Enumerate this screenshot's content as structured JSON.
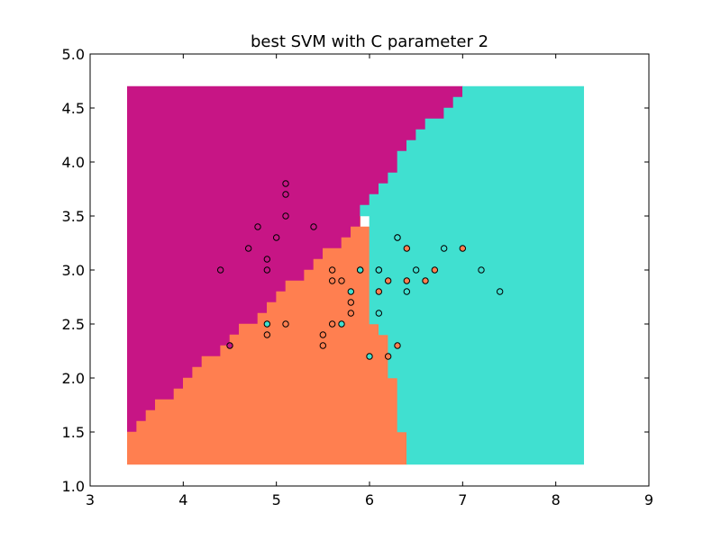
{
  "chart_data": {
    "type": "scatter",
    "title": "best SVM with C parameter 2",
    "xlabel": "",
    "ylabel": "",
    "xlim": [
      3,
      9
    ],
    "ylim": [
      1.0,
      5.0
    ],
    "grid": false,
    "x_ticks": [
      "3",
      "4",
      "5",
      "6",
      "7",
      "8",
      "9"
    ],
    "y_ticks": [
      "1.0",
      "1.5",
      "2.0",
      "2.5",
      "3.0",
      "3.5",
      "4.0",
      "4.5",
      "5.0"
    ],
    "x_tick_values": [
      3,
      4,
      5,
      6,
      7,
      8,
      9
    ],
    "y_tick_values": [
      1.0,
      1.5,
      2.0,
      2.5,
      3.0,
      3.5,
      4.0,
      4.5,
      5.0
    ],
    "colors": {
      "class_0": "#c71585",
      "class_1": "#ff7f50",
      "class_2": "#40e0d0",
      "marker_edge": "#000000"
    },
    "decision_regions": [
      {
        "name": "class_0",
        "color": "#c71585",
        "polygon": [
          [
            3.4,
            1.5
          ],
          [
            3.5,
            1.5
          ],
          [
            3.5,
            1.6
          ],
          [
            3.6,
            1.6
          ],
          [
            3.6,
            1.7
          ],
          [
            3.7,
            1.7
          ],
          [
            3.7,
            1.8
          ],
          [
            3.9,
            1.8
          ],
          [
            3.9,
            1.9
          ],
          [
            4.0,
            1.9
          ],
          [
            4.0,
            2.0
          ],
          [
            4.1,
            2.0
          ],
          [
            4.1,
            2.1
          ],
          [
            4.2,
            2.1
          ],
          [
            4.2,
            2.2
          ],
          [
            4.4,
            2.2
          ],
          [
            4.4,
            2.3
          ],
          [
            4.5,
            2.3
          ],
          [
            4.5,
            2.4
          ],
          [
            4.6,
            2.4
          ],
          [
            4.6,
            2.5
          ],
          [
            4.8,
            2.5
          ],
          [
            4.8,
            2.6
          ],
          [
            4.9,
            2.6
          ],
          [
            4.9,
            2.7
          ],
          [
            5.0,
            2.7
          ],
          [
            5.0,
            2.8
          ],
          [
            5.1,
            2.8
          ],
          [
            5.1,
            2.9
          ],
          [
            5.3,
            2.9
          ],
          [
            5.3,
            3.0
          ],
          [
            5.4,
            3.0
          ],
          [
            5.4,
            3.1
          ],
          [
            5.5,
            3.1
          ],
          [
            5.5,
            3.2
          ],
          [
            5.7,
            3.2
          ],
          [
            5.7,
            3.3
          ],
          [
            5.8,
            3.3
          ],
          [
            5.8,
            3.4
          ],
          [
            5.9,
            3.4
          ],
          [
            5.9,
            3.5
          ],
          [
            5.9,
            3.6
          ],
          [
            6.0,
            3.6
          ],
          [
            6.0,
            3.7
          ],
          [
            6.1,
            3.7
          ],
          [
            6.1,
            3.8
          ],
          [
            6.2,
            3.8
          ],
          [
            6.2,
            3.9
          ],
          [
            6.3,
            3.9
          ],
          [
            6.3,
            4.1
          ],
          [
            6.4,
            4.1
          ],
          [
            6.4,
            4.2
          ],
          [
            6.5,
            4.2
          ],
          [
            6.5,
            4.3
          ],
          [
            6.6,
            4.3
          ],
          [
            6.6,
            4.4
          ],
          [
            6.8,
            4.4
          ],
          [
            6.8,
            4.5
          ],
          [
            6.9,
            4.5
          ],
          [
            6.9,
            4.6
          ],
          [
            7.0,
            4.6
          ],
          [
            7.0,
            4.7
          ],
          [
            3.4,
            4.7
          ]
        ]
      },
      {
        "name": "class_1",
        "color": "#ff7f50",
        "polygon": [
          [
            3.4,
            1.2
          ],
          [
            6.4,
            1.2
          ],
          [
            6.4,
            1.5
          ],
          [
            6.3,
            1.5
          ],
          [
            6.3,
            2.0
          ],
          [
            6.2,
            2.0
          ],
          [
            6.2,
            2.4
          ],
          [
            6.1,
            2.4
          ],
          [
            6.1,
            2.5
          ],
          [
            6.0,
            2.5
          ],
          [
            6.0,
            3.4
          ],
          [
            5.9,
            3.4
          ],
          [
            5.9,
            3.5
          ],
          [
            5.9,
            3.4
          ],
          [
            5.8,
            3.4
          ],
          [
            5.8,
            3.3
          ],
          [
            5.7,
            3.3
          ],
          [
            5.7,
            3.2
          ],
          [
            5.5,
            3.2
          ],
          [
            5.5,
            3.1
          ],
          [
            5.4,
            3.1
          ],
          [
            5.4,
            3.0
          ],
          [
            5.3,
            3.0
          ],
          [
            5.3,
            2.9
          ],
          [
            5.1,
            2.9
          ],
          [
            5.1,
            2.8
          ],
          [
            5.0,
            2.8
          ],
          [
            5.0,
            2.7
          ],
          [
            4.9,
            2.7
          ],
          [
            4.9,
            2.6
          ],
          [
            4.8,
            2.6
          ],
          [
            4.8,
            2.5
          ],
          [
            4.6,
            2.5
          ],
          [
            4.6,
            2.4
          ],
          [
            4.5,
            2.4
          ],
          [
            4.5,
            2.3
          ],
          [
            4.4,
            2.3
          ],
          [
            4.4,
            2.2
          ],
          [
            4.2,
            2.2
          ],
          [
            4.2,
            2.1
          ],
          [
            4.1,
            2.1
          ],
          [
            4.1,
            2.0
          ],
          [
            4.0,
            2.0
          ],
          [
            4.0,
            1.9
          ],
          [
            3.9,
            1.9
          ],
          [
            3.9,
            1.8
          ],
          [
            3.7,
            1.8
          ],
          [
            3.7,
            1.7
          ],
          [
            3.6,
            1.7
          ],
          [
            3.6,
            1.6
          ],
          [
            3.5,
            1.6
          ],
          [
            3.5,
            1.5
          ],
          [
            3.4,
            1.5
          ]
        ]
      },
      {
        "name": "class_2",
        "color": "#40e0d0",
        "polygon": [
          [
            6.4,
            1.2
          ],
          [
            8.3,
            1.2
          ],
          [
            8.3,
            4.7
          ],
          [
            7.0,
            4.7
          ],
          [
            7.0,
            4.6
          ],
          [
            6.9,
            4.6
          ],
          [
            6.9,
            4.5
          ],
          [
            6.8,
            4.5
          ],
          [
            6.8,
            4.4
          ],
          [
            6.6,
            4.4
          ],
          [
            6.6,
            4.3
          ],
          [
            6.5,
            4.3
          ],
          [
            6.5,
            4.2
          ],
          [
            6.4,
            4.2
          ],
          [
            6.4,
            4.1
          ],
          [
            6.3,
            4.1
          ],
          [
            6.3,
            3.9
          ],
          [
            6.2,
            3.9
          ],
          [
            6.2,
            3.8
          ],
          [
            6.1,
            3.8
          ],
          [
            6.1,
            3.7
          ],
          [
            6.0,
            3.7
          ],
          [
            6.0,
            3.6
          ],
          [
            5.9,
            3.6
          ],
          [
            5.9,
            3.5
          ],
          [
            6.0,
            3.5
          ],
          [
            6.0,
            2.5
          ],
          [
            6.1,
            2.5
          ],
          [
            6.1,
            2.4
          ],
          [
            6.2,
            2.4
          ],
          [
            6.2,
            2.0
          ],
          [
            6.3,
            2.0
          ],
          [
            6.3,
            1.5
          ],
          [
            6.4,
            1.5
          ]
        ]
      }
    ],
    "series": [
      {
        "name": "class_0",
        "color": "#c71585",
        "points": [
          [
            4.4,
            3.0
          ],
          [
            4.7,
            3.2
          ],
          [
            4.8,
            3.4
          ],
          [
            4.9,
            3.1
          ],
          [
            4.9,
            3.0
          ],
          [
            5.0,
            3.3
          ],
          [
            5.1,
            3.8
          ],
          [
            5.1,
            3.7
          ],
          [
            5.1,
            3.5
          ],
          [
            5.4,
            3.4
          ],
          [
            4.5,
            2.3
          ]
        ]
      },
      {
        "name": "class_1",
        "color": "#ff7f50",
        "points": [
          [
            4.9,
            2.4
          ],
          [
            5.1,
            2.5
          ],
          [
            5.5,
            2.4
          ],
          [
            5.5,
            2.3
          ],
          [
            5.6,
            3.0
          ],
          [
            5.6,
            2.9
          ],
          [
            5.6,
            2.5
          ],
          [
            5.7,
            2.9
          ],
          [
            5.8,
            2.7
          ],
          [
            5.8,
            2.6
          ],
          [
            6.1,
            2.8
          ],
          [
            6.2,
            2.2
          ],
          [
            6.2,
            2.9
          ],
          [
            6.3,
            3.3
          ],
          [
            6.3,
            2.3
          ],
          [
            6.4,
            3.2
          ],
          [
            6.4,
            2.9
          ],
          [
            6.6,
            2.9
          ],
          [
            6.7,
            3.0
          ],
          [
            7.0,
            3.2
          ],
          [
            6.1,
            3.0
          ],
          [
            5.9,
            3.0
          ]
        ]
      },
      {
        "name": "class_2",
        "color": "#40e0d0",
        "points": [
          [
            4.9,
            2.5
          ],
          [
            5.7,
            2.5
          ],
          [
            5.8,
            2.8
          ],
          [
            5.9,
            3.0
          ],
          [
            6.0,
            2.2
          ],
          [
            6.1,
            2.6
          ],
          [
            6.1,
            3.0
          ],
          [
            6.3,
            3.3
          ],
          [
            6.4,
            2.8
          ],
          [
            6.5,
            3.0
          ],
          [
            6.8,
            3.2
          ],
          [
            7.2,
            3.0
          ],
          [
            7.4,
            2.8
          ]
        ]
      }
    ]
  }
}
